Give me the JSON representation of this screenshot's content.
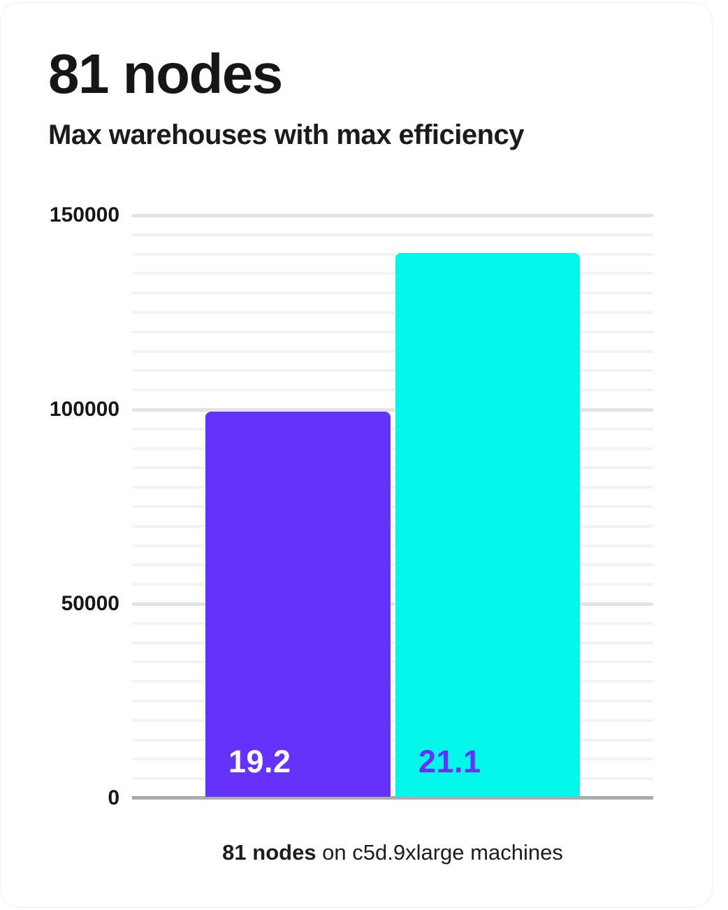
{
  "header": {
    "title": "81 nodes",
    "subtitle": "Max warehouses with max efficiency"
  },
  "caption": {
    "bold": "81 nodes",
    "rest": " on c5d.9xlarge machines"
  },
  "colors": {
    "background": "#FFFFFF",
    "text": "#161616",
    "grid_minor": "#F2F2F2",
    "grid_major": "#E3E3E3",
    "axis": "#ABABAB",
    "bar_purple": "#6432FA",
    "bar_cyan": "#00F7E9",
    "label_on_purple": "#FFFFFF",
    "label_on_cyan": "#6432FA"
  },
  "chart_data": {
    "type": "bar",
    "title": "Max warehouses with max efficiency",
    "categories": [
      "19.2",
      "21.1"
    ],
    "values": [
      99500,
      140300
    ],
    "bars": [
      {
        "label": "19.2",
        "value": 99500,
        "color": "#6432FA",
        "label_color": "#FFFFFF"
      },
      {
        "label": "21.1",
        "value": 140300,
        "color": "#00F7E9",
        "label_color": "#6432FA"
      }
    ],
    "xlabel": "81 nodes on c5d.9xlarge machines",
    "ylabel": "",
    "ylim": [
      0,
      150000
    ],
    "yticks": [
      {
        "value": 0,
        "label": "0"
      },
      {
        "value": 50000,
        "label": "50000"
      },
      {
        "value": 100000,
        "label": "100000"
      },
      {
        "value": 150000,
        "label": "150000"
      }
    ],
    "grid": {
      "show": true,
      "minor_step": 5000,
      "major_step": 50000
    },
    "legend_position": "none"
  }
}
